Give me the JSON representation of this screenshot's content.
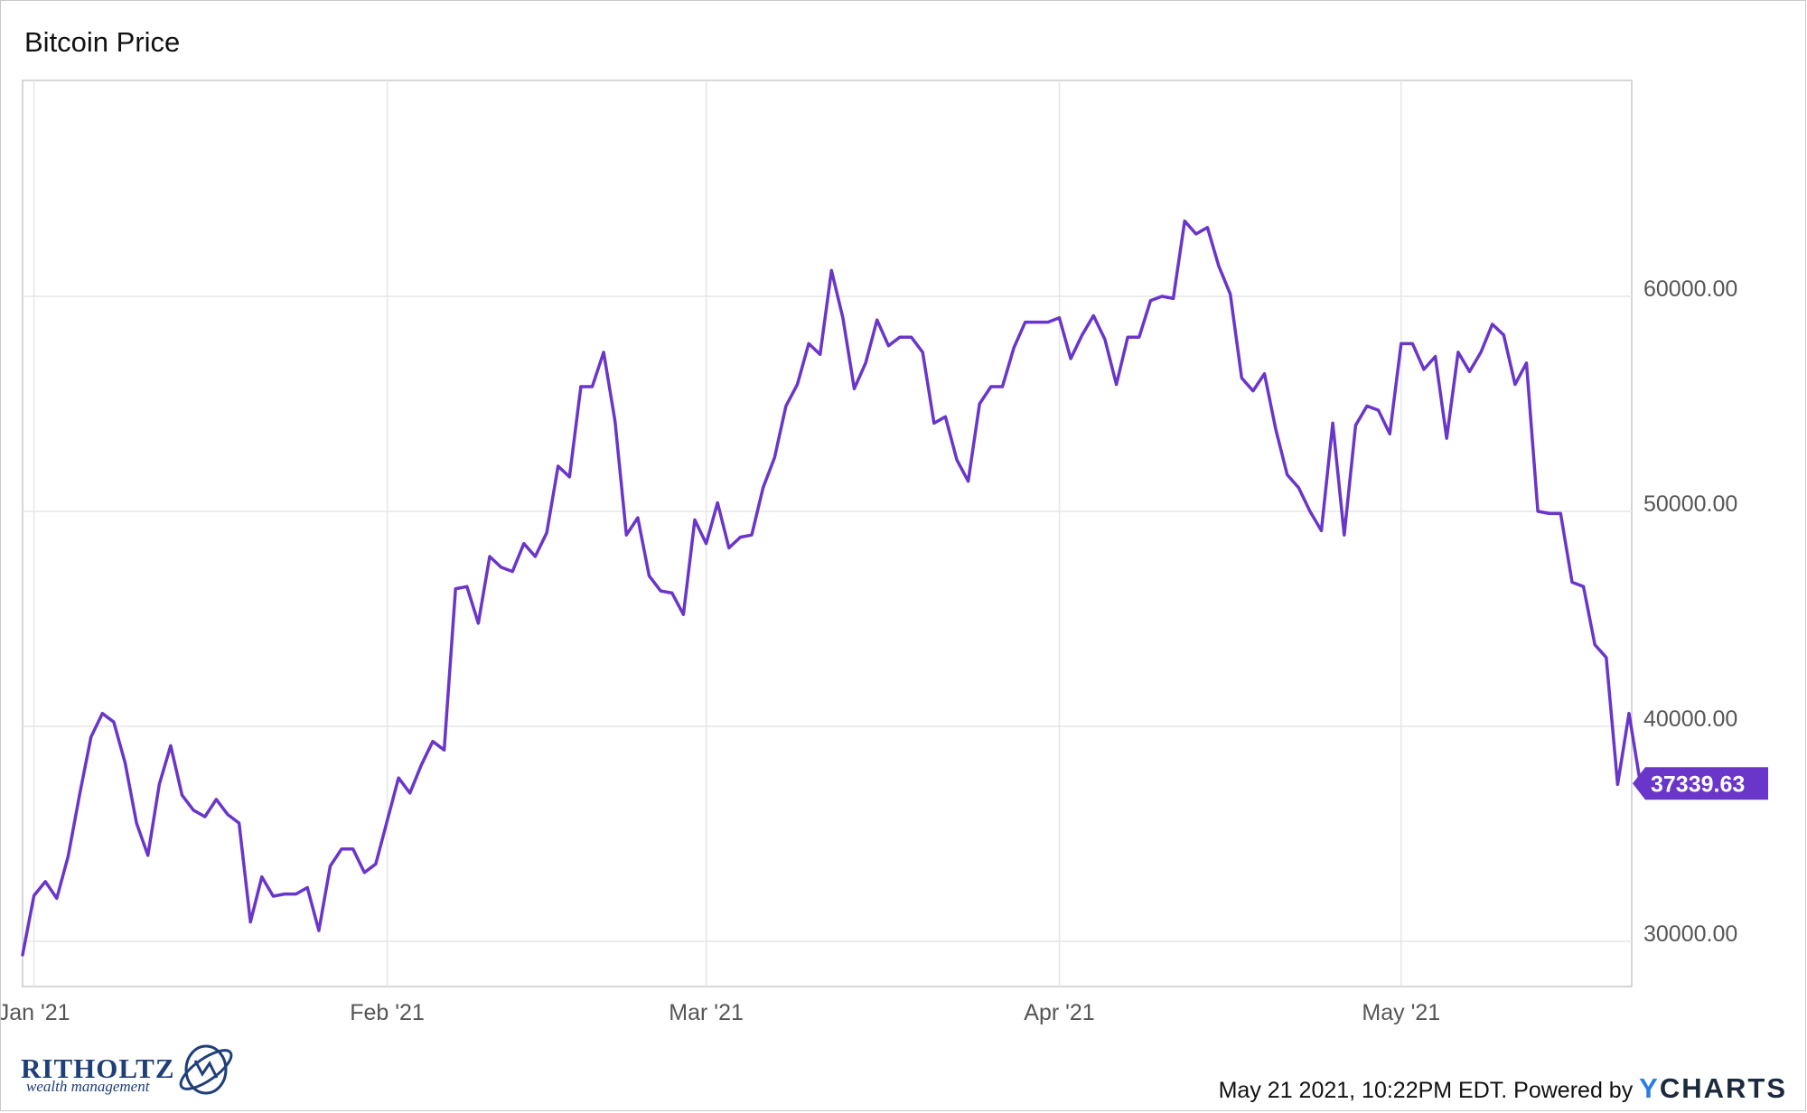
{
  "chart_data": {
    "type": "line",
    "title": "Bitcoin Price",
    "xlabel": "",
    "ylabel": "",
    "x_start": "2020-12-31",
    "x_end": "2021-05-21",
    "ylim": [
      28000,
      70000
    ],
    "y_ticks": [
      30000,
      40000,
      50000,
      60000
    ],
    "y_tick_labels": [
      "30000.00",
      "40000.00",
      "50000.00",
      "60000.00"
    ],
    "x_ticks": [
      {
        "date": "2021-01-01",
        "label": "Jan '21"
      },
      {
        "date": "2021-02-01",
        "label": "Feb '21"
      },
      {
        "date": "2021-03-01",
        "label": "Mar '21"
      },
      {
        "date": "2021-04-01",
        "label": "Apr '21"
      },
      {
        "date": "2021-05-01",
        "label": "May '21"
      }
    ],
    "grid": true,
    "series": [
      {
        "color": "#6a35c9",
        "last_value_label": "37339.63",
        "points": [
          [
            "2020-12-31",
            29374
          ],
          [
            "2021-01-01",
            32127
          ],
          [
            "2021-01-02",
            32780
          ],
          [
            "2021-01-03",
            32000
          ],
          [
            "2021-01-04",
            33950
          ],
          [
            "2021-01-05",
            36800
          ],
          [
            "2021-01-06",
            39500
          ],
          [
            "2021-01-07",
            40600
          ],
          [
            "2021-01-08",
            40200
          ],
          [
            "2021-01-09",
            38300
          ],
          [
            "2021-01-10",
            35500
          ],
          [
            "2021-01-11",
            34000
          ],
          [
            "2021-01-12",
            37300
          ],
          [
            "2021-01-13",
            39100
          ],
          [
            "2021-01-14",
            36800
          ],
          [
            "2021-01-15",
            36100
          ],
          [
            "2021-01-16",
            35800
          ],
          [
            "2021-01-17",
            36600
          ],
          [
            "2021-01-18",
            35900
          ],
          [
            "2021-01-19",
            35500
          ],
          [
            "2021-01-20",
            30900
          ],
          [
            "2021-01-21",
            33000
          ],
          [
            "2021-01-22",
            32100
          ],
          [
            "2021-01-23",
            32200
          ],
          [
            "2021-01-24",
            32200
          ],
          [
            "2021-01-25",
            32500
          ],
          [
            "2021-01-26",
            30500
          ],
          [
            "2021-01-27",
            33500
          ],
          [
            "2021-01-28",
            34300
          ],
          [
            "2021-01-29",
            34300
          ],
          [
            "2021-01-30",
            33200
          ],
          [
            "2021-01-31",
            33600
          ],
          [
            "2021-02-01",
            35600
          ],
          [
            "2021-02-02",
            37600
          ],
          [
            "2021-02-03",
            36900
          ],
          [
            "2021-02-04",
            38200
          ],
          [
            "2021-02-05",
            39300
          ],
          [
            "2021-02-06",
            38900
          ],
          [
            "2021-02-07",
            46400
          ],
          [
            "2021-02-08",
            46500
          ],
          [
            "2021-02-09",
            44800
          ],
          [
            "2021-02-10",
            47900
          ],
          [
            "2021-02-11",
            47400
          ],
          [
            "2021-02-12",
            47200
          ],
          [
            "2021-02-13",
            48500
          ],
          [
            "2021-02-14",
            47900
          ],
          [
            "2021-02-15",
            49000
          ],
          [
            "2021-02-16",
            52100
          ],
          [
            "2021-02-17",
            51600
          ],
          [
            "2021-02-18",
            55800
          ],
          [
            "2021-02-19",
            55800
          ],
          [
            "2021-02-20",
            57400
          ],
          [
            "2021-02-21",
            54200
          ],
          [
            "2021-02-22",
            48900
          ],
          [
            "2021-02-23",
            49700
          ],
          [
            "2021-02-24",
            47000
          ],
          [
            "2021-02-25",
            46300
          ],
          [
            "2021-02-26",
            46200
          ],
          [
            "2021-02-27",
            45200
          ],
          [
            "2021-02-28",
            49600
          ],
          [
            "2021-03-01",
            48500
          ],
          [
            "2021-03-02",
            50400
          ],
          [
            "2021-03-03",
            48300
          ],
          [
            "2021-03-04",
            48800
          ],
          [
            "2021-03-05",
            48900
          ],
          [
            "2021-03-06",
            51100
          ],
          [
            "2021-03-07",
            52500
          ],
          [
            "2021-03-08",
            54900
          ],
          [
            "2021-03-09",
            55900
          ],
          [
            "2021-03-10",
            57800
          ],
          [
            "2021-03-11",
            57300
          ],
          [
            "2021-03-12",
            61200
          ],
          [
            "2021-03-13",
            59000
          ],
          [
            "2021-03-14",
            55700
          ],
          [
            "2021-03-15",
            56900
          ],
          [
            "2021-03-16",
            58900
          ],
          [
            "2021-03-17",
            57700
          ],
          [
            "2021-03-18",
            58100
          ],
          [
            "2021-03-19",
            58100
          ],
          [
            "2021-03-20",
            57400
          ],
          [
            "2021-03-21",
            54100
          ],
          [
            "2021-03-22",
            54400
          ],
          [
            "2021-03-23",
            52400
          ],
          [
            "2021-03-24",
            51400
          ],
          [
            "2021-03-25",
            55000
          ],
          [
            "2021-03-26",
            55800
          ],
          [
            "2021-03-27",
            55800
          ],
          [
            "2021-03-28",
            57600
          ],
          [
            "2021-03-29",
            58800
          ],
          [
            "2021-03-30",
            58800
          ],
          [
            "2021-03-31",
            58800
          ],
          [
            "2021-04-01",
            59000
          ],
          [
            "2021-04-02",
            57100
          ],
          [
            "2021-04-03",
            58200
          ],
          [
            "2021-04-04",
            59100
          ],
          [
            "2021-04-05",
            58000
          ],
          [
            "2021-04-06",
            55900
          ],
          [
            "2021-04-07",
            58100
          ],
          [
            "2021-04-08",
            58100
          ],
          [
            "2021-04-09",
            59800
          ],
          [
            "2021-04-10",
            60000
          ],
          [
            "2021-04-11",
            59900
          ],
          [
            "2021-04-12",
            63500
          ],
          [
            "2021-04-13",
            62900
          ],
          [
            "2021-04-14",
            63200
          ],
          [
            "2021-04-15",
            61400
          ],
          [
            "2021-04-16",
            60100
          ],
          [
            "2021-04-17",
            56200
          ],
          [
            "2021-04-18",
            55600
          ],
          [
            "2021-04-19",
            56400
          ],
          [
            "2021-04-20",
            53800
          ],
          [
            "2021-04-21",
            51700
          ],
          [
            "2021-04-22",
            51100
          ],
          [
            "2021-04-23",
            50000
          ],
          [
            "2021-04-24",
            49100
          ],
          [
            "2021-04-25",
            54100
          ],
          [
            "2021-04-26",
            48900
          ],
          [
            "2021-04-27",
            54000
          ],
          [
            "2021-04-28",
            54900
          ],
          [
            "2021-04-29",
            54700
          ],
          [
            "2021-04-30",
            53600
          ],
          [
            "2021-05-01",
            57800
          ],
          [
            "2021-05-02",
            57800
          ],
          [
            "2021-05-03",
            56600
          ],
          [
            "2021-05-04",
            57200
          ],
          [
            "2021-05-05",
            53400
          ],
          [
            "2021-05-06",
            57400
          ],
          [
            "2021-05-07",
            56500
          ],
          [
            "2021-05-08",
            57400
          ],
          [
            "2021-05-09",
            58700
          ],
          [
            "2021-05-10",
            58200
          ],
          [
            "2021-05-11",
            55900
          ],
          [
            "2021-05-12",
            56900
          ],
          [
            "2021-05-13",
            50000
          ],
          [
            "2021-05-14",
            49900
          ],
          [
            "2021-05-15",
            49900
          ],
          [
            "2021-05-16",
            46700
          ],
          [
            "2021-05-17",
            46500
          ],
          [
            "2021-05-18",
            43800
          ],
          [
            "2021-05-19",
            43200
          ],
          [
            "2021-05-20",
            37300
          ],
          [
            "2021-05-21",
            40600
          ],
          [
            "2021-05-22",
            37340
          ]
        ]
      }
    ]
  },
  "branding": {
    "logo_main": "RITHOLTZ",
    "logo_sub": "wealth management",
    "credit_text": "May 21 2021, 10:22PM EDT. Powered by ",
    "ycharts_y": "Y",
    "ycharts_rest": "CHARTS",
    "colors": {
      "logo": "#1f3f78",
      "ycharts_blue": "#2a7de1",
      "ycharts_dark": "#1b2a3c"
    }
  }
}
